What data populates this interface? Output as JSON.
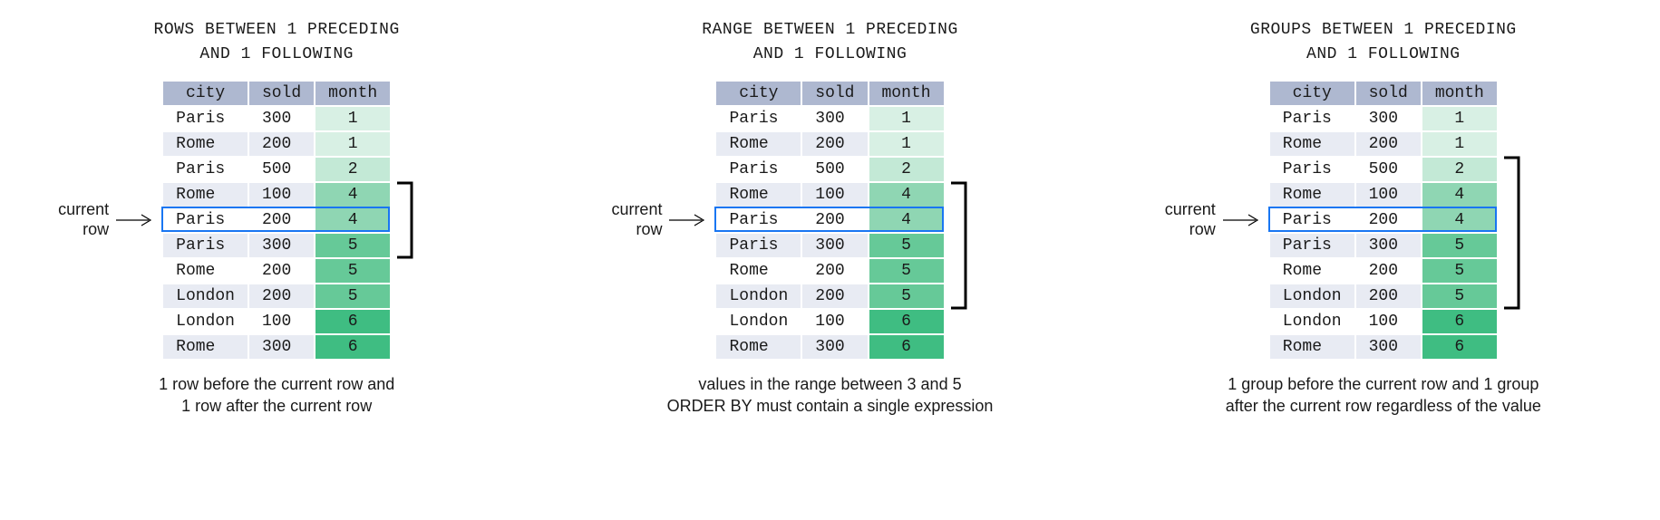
{
  "colors": {
    "header_bg": "#aeb8d0",
    "row_alt_bg": "#e8ebf3",
    "current_row_border": "#1976f2",
    "bracket_color": "#000000",
    "text_color": "#1a1a1a"
  },
  "month_colors": {
    "1": "#d8f0e4",
    "2": "#c3e9d6",
    "4": "#8fd6b3",
    "5": "#66c998",
    "6": "#3fbd82"
  },
  "typography": {
    "mono_family": "Consolas, Courier New, monospace",
    "sans_family": "Segoe UI, Helvetica Neue, Arial, sans-serif",
    "title_fontsize": 18,
    "body_fontsize": 18
  },
  "common": {
    "columns": [
      "city",
      "sold",
      "month"
    ],
    "rows": [
      {
        "city": "Paris",
        "sold": 300,
        "month": 1,
        "shade": false
      },
      {
        "city": "Rome",
        "sold": 200,
        "month": 1,
        "shade": true
      },
      {
        "city": "Paris",
        "sold": 500,
        "month": 2,
        "shade": false
      },
      {
        "city": "Rome",
        "sold": 100,
        "month": 4,
        "shade": true
      },
      {
        "city": "Paris",
        "sold": 200,
        "month": 4,
        "shade": false
      },
      {
        "city": "Paris",
        "sold": 300,
        "month": 5,
        "shade": true
      },
      {
        "city": "Rome",
        "sold": 200,
        "month": 5,
        "shade": false
      },
      {
        "city": "London",
        "sold": 200,
        "month": 5,
        "shade": true
      },
      {
        "city": "London",
        "sold": 100,
        "month": 6,
        "shade": false
      },
      {
        "city": "Rome",
        "sold": 300,
        "month": 6,
        "shade": true
      }
    ],
    "current_row_index": 4,
    "current_row_label": "current\nrow"
  },
  "panels": [
    {
      "id": "rows",
      "title": "ROWS BETWEEN 1 PRECEDING\nAND 1 FOLLOWING",
      "caption": "1 row before the current row and\n1 row after the current row",
      "bracket_start": 3,
      "bracket_end": 5
    },
    {
      "id": "range",
      "title": "RANGE BETWEEN 1 PRECEDING\nAND 1 FOLLOWING",
      "caption": "values in the range between 3 and 5\nORDER  BY must contain a single expression",
      "bracket_start": 3,
      "bracket_end": 7
    },
    {
      "id": "groups",
      "title": "GROUPS BETWEEN 1 PRECEDING\nAND 1 FOLLOWING",
      "caption": "1 group before the current row and 1 group\nafter the current row regardless of the value",
      "bracket_start": 2,
      "bracket_end": 7
    }
  ]
}
